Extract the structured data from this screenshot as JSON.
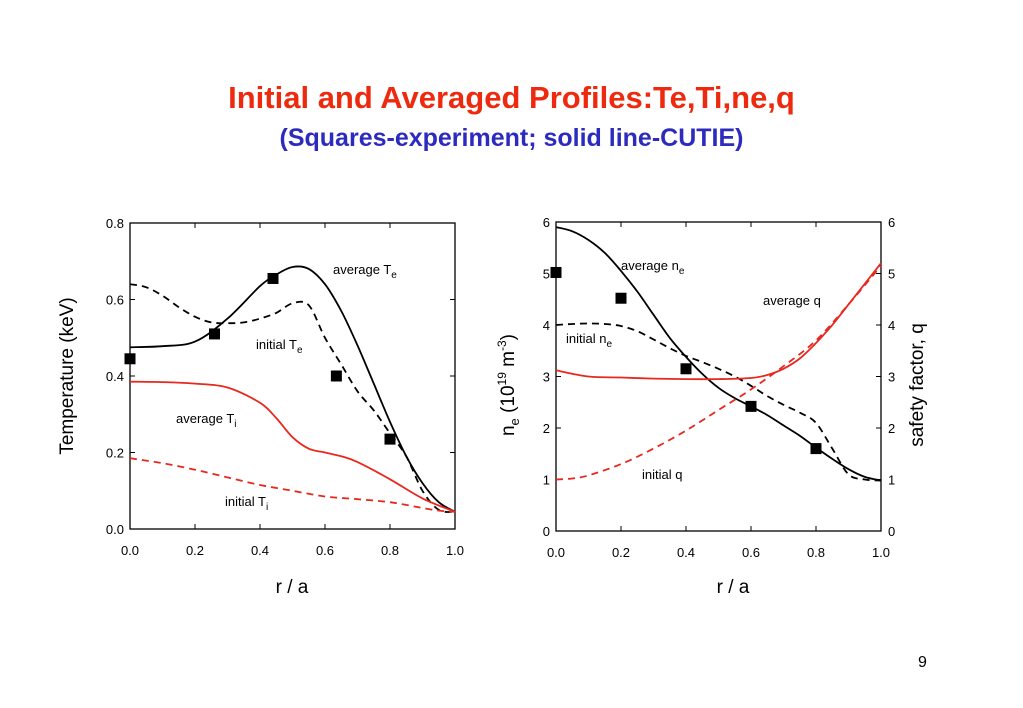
{
  "slide": {
    "title": "Initial and Averaged Profiles:Te,Ti,ne,q",
    "subtitle": "(Squares-experiment; solid line-CUTIE)",
    "page_number": "9"
  },
  "colors": {
    "title": "#ee2a0e",
    "subtitle": "#2d2bbe",
    "model_red": "#e8281e",
    "black": "#000000"
  },
  "chart_data": [
    {
      "type": "line",
      "xlabel": "r / a",
      "ylabel": "Temperature (keV)",
      "xlim": [
        0,
        1
      ],
      "ylim": [
        0,
        0.8
      ],
      "xticks": [
        "0.0",
        "0.2",
        "0.4",
        "0.6",
        "0.8",
        "1.0"
      ],
      "yticks": [
        "0.0",
        "0.2",
        "0.4",
        "0.6",
        "0.8"
      ],
      "series": [
        {
          "name": "average Te",
          "style": "solid",
          "color": "#000000",
          "x": [
            0,
            0.1,
            0.2,
            0.3,
            0.4,
            0.45,
            0.5,
            0.55,
            0.6,
            0.65,
            0.7,
            0.75,
            0.8,
            0.85,
            0.9,
            0.95,
            1.0
          ],
          "y": [
            0.475,
            0.478,
            0.49,
            0.55,
            0.635,
            0.665,
            0.685,
            0.68,
            0.64,
            0.57,
            0.48,
            0.38,
            0.28,
            0.19,
            0.12,
            0.07,
            0.045
          ]
        },
        {
          "name": "initial Te",
          "style": "dashed",
          "color": "#000000",
          "x": [
            0,
            0.05,
            0.1,
            0.15,
            0.2,
            0.25,
            0.3,
            0.35,
            0.4,
            0.45,
            0.5,
            0.55,
            0.6,
            0.65,
            0.7,
            0.75,
            0.8,
            0.85,
            0.9,
            0.95,
            1.0
          ],
          "y": [
            0.64,
            0.632,
            0.61,
            0.58,
            0.555,
            0.54,
            0.538,
            0.54,
            0.55,
            0.565,
            0.59,
            0.585,
            0.5,
            0.43,
            0.36,
            0.31,
            0.25,
            0.19,
            0.1,
            0.05,
            0.045
          ]
        },
        {
          "name": "average Ti",
          "style": "solid",
          "color": "#e8281e",
          "x": [
            0,
            0.1,
            0.2,
            0.3,
            0.4,
            0.45,
            0.5,
            0.55,
            0.6,
            0.65,
            0.7,
            0.8,
            0.9,
            1.0
          ],
          "y": [
            0.385,
            0.384,
            0.38,
            0.37,
            0.33,
            0.29,
            0.24,
            0.21,
            0.2,
            0.19,
            0.175,
            0.13,
            0.08,
            0.045
          ]
        },
        {
          "name": "initial Ti",
          "style": "dashed",
          "color": "#e8281e",
          "x": [
            0,
            0.1,
            0.2,
            0.3,
            0.4,
            0.5,
            0.6,
            0.7,
            0.8,
            0.9,
            0.95,
            1.0
          ],
          "y": [
            0.185,
            0.172,
            0.155,
            0.135,
            0.115,
            0.1,
            0.085,
            0.078,
            0.07,
            0.055,
            0.048,
            0.045
          ]
        },
        {
          "name": "experiment",
          "style": "markers",
          "color": "#000000",
          "x": [
            0.0,
            0.26,
            0.44,
            0.635,
            0.8
          ],
          "y": [
            0.445,
            0.51,
            0.655,
            0.4,
            0.235
          ]
        }
      ],
      "annotations": [
        {
          "text": "average T",
          "sub": "e"
        },
        {
          "text": "initial T",
          "sub": "e"
        },
        {
          "text": "average T",
          "sub": "i"
        },
        {
          "text": "initial T",
          "sub": "i"
        }
      ]
    },
    {
      "type": "line",
      "xlabel": "r / a",
      "ylabel": "n",
      "ylabel_sub": "e",
      "ylabel_rest": "(10",
      "ylabel_sup": "19",
      "ylabel_unit": "m",
      "ylabel_unit_sup": "-3",
      "ylabel_close": ")",
      "y2label": "safety factor, q",
      "xlim": [
        0,
        1
      ],
      "ylim": [
        0,
        6
      ],
      "y2lim": [
        0,
        6
      ],
      "xticks": [
        "0.0",
        "0.2",
        "0.4",
        "0.6",
        "0.8",
        "1.0"
      ],
      "yticks": [
        "0",
        "1",
        "2",
        "3",
        "4",
        "5",
        "6"
      ],
      "y2ticks": [
        "0",
        "1",
        "2",
        "3",
        "4",
        "5",
        "6"
      ],
      "series": [
        {
          "name": "average ne",
          "style": "solid",
          "color": "#000000",
          "x": [
            0,
            0.05,
            0.1,
            0.15,
            0.2,
            0.25,
            0.3,
            0.35,
            0.4,
            0.45,
            0.5,
            0.55,
            0.6,
            0.65,
            0.7,
            0.75,
            0.8,
            0.85,
            0.9,
            0.95,
            1.0
          ],
          "y": [
            5.9,
            5.82,
            5.65,
            5.4,
            5.05,
            4.65,
            4.2,
            3.75,
            3.38,
            3.05,
            2.78,
            2.58,
            2.42,
            2.25,
            2.05,
            1.85,
            1.62,
            1.4,
            1.2,
            1.05,
            0.98
          ]
        },
        {
          "name": "initial ne",
          "style": "dashed",
          "color": "#000000",
          "x": [
            0,
            0.05,
            0.1,
            0.15,
            0.2,
            0.25,
            0.3,
            0.35,
            0.4,
            0.45,
            0.5,
            0.55,
            0.6,
            0.65,
            0.7,
            0.75,
            0.8,
            0.85,
            0.9,
            0.95,
            1.0
          ],
          "y": [
            4.0,
            4.02,
            4.03,
            4.02,
            3.98,
            3.88,
            3.72,
            3.55,
            3.4,
            3.28,
            3.15,
            3.0,
            2.82,
            2.62,
            2.45,
            2.3,
            2.1,
            1.6,
            1.1,
            1.0,
            0.98
          ]
        },
        {
          "name": "average q",
          "style": "solid",
          "color": "#e8281e",
          "x": [
            0,
            0.1,
            0.2,
            0.3,
            0.4,
            0.5,
            0.6,
            0.65,
            0.7,
            0.75,
            0.8,
            0.85,
            0.9,
            0.95,
            1.0
          ],
          "y": [
            3.12,
            3.0,
            2.98,
            2.96,
            2.95,
            2.95,
            2.97,
            3.03,
            3.15,
            3.35,
            3.65,
            4.0,
            4.4,
            4.8,
            5.2
          ]
        },
        {
          "name": "initial q",
          "style": "dashed",
          "color": "#e8281e",
          "x": [
            0,
            0.05,
            0.1,
            0.2,
            0.3,
            0.4,
            0.5,
            0.6,
            0.7,
            0.8,
            0.9,
            1.0
          ],
          "y": [
            1.0,
            1.02,
            1.08,
            1.3,
            1.6,
            1.95,
            2.35,
            2.75,
            3.2,
            3.7,
            4.4,
            5.15
          ]
        },
        {
          "name": "experiment",
          "style": "markers",
          "color": "#000000",
          "x": [
            0.0,
            0.2,
            0.4,
            0.6,
            0.8
          ],
          "y": [
            5.02,
            4.52,
            3.15,
            2.42,
            1.6
          ]
        }
      ],
      "annotations": [
        {
          "text": "average n",
          "sub": "e"
        },
        {
          "text": "initial n",
          "sub": "e"
        },
        {
          "text": "average q",
          "sub": ""
        },
        {
          "text": "initial q",
          "sub": ""
        }
      ]
    }
  ]
}
